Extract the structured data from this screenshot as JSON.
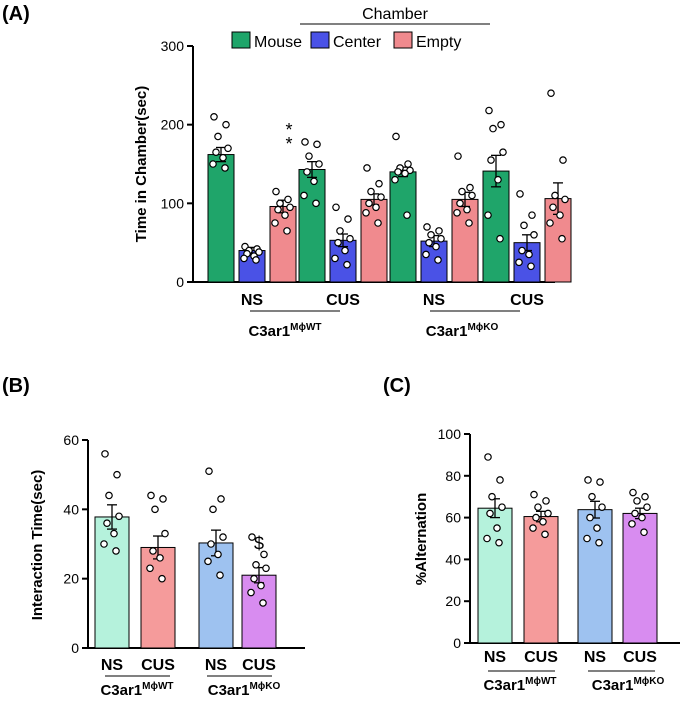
{
  "colors": {
    "mouse": "#1fa56a",
    "center": "#4a52e6",
    "empty": "#f08a8e",
    "wt_ns": "#b5f2dc",
    "wt_cus": "#f59b9b",
    "ko_ns": "#9ec2f0",
    "ko_cus": "#d88cf0"
  },
  "chart_data": [
    {
      "panel": "(A)",
      "type": "bar",
      "ylabel": "Time in Chamber(sec)",
      "ylim": [
        0,
        300
      ],
      "yticks": [
        "0",
        "100",
        "200",
        "300"
      ],
      "legend_title": "Chamber",
      "legend_placement": "top",
      "groups": [
        {
          "label": "NS",
          "genotype": 0,
          "values": [
            162,
            40,
            96
          ],
          "errors": [
            9,
            4,
            8
          ],
          "points": [
            [
              210,
              200,
              185,
              170,
              165,
              158,
              150,
              145
            ],
            [
              45,
              42,
              40,
              38,
              36,
              33,
              30,
              28
            ],
            [
              115,
              105,
              100,
              95,
              92,
              85,
              75,
              65
            ]
          ],
          "annotation": "*\n*"
        },
        {
          "label": "CUS",
          "genotype": 0,
          "values": [
            143,
            53,
            105
          ],
          "errors": [
            10,
            8,
            7
          ],
          "points": [
            [
              178,
              175,
              160,
              150,
              140,
              128,
              110,
              100
            ],
            [
              95,
              80,
              65,
              55,
              50,
              40,
              30,
              22
            ],
            [
              145,
              125,
              115,
              108,
              100,
              95,
              88,
              75
            ]
          ],
          "annotation": ""
        },
        {
          "label": "NS",
          "genotype": 1,
          "values": [
            140,
            52,
            105
          ],
          "errors": [
            6,
            7,
            9
          ],
          "points": [
            [
              185,
              150,
              145,
              142,
              140,
              138,
              130,
              85
            ],
            [
              70,
              65,
              60,
              55,
              50,
              45,
              35,
              28
            ],
            [
              160,
              120,
              115,
              110,
              100,
              92,
              88,
              75
            ]
          ],
          "annotation": ""
        },
        {
          "label": "CUS",
          "genotype": 1,
          "values": [
            141,
            50,
            106
          ],
          "errors": [
            20,
            10,
            20
          ],
          "points": [
            [
              218,
              200,
              195,
              165,
              155,
              130,
              85,
              55
            ],
            [
              112,
              85,
              72,
              60,
              40,
              35,
              25,
              20
            ],
            [
              240,
              155,
              110,
              105,
              95,
              85,
              75,
              55
            ]
          ],
          "annotation": ""
        }
      ],
      "series": [
        {
          "name": "Mouse",
          "color_key": "mouse"
        },
        {
          "name": "Center",
          "color_key": "center"
        },
        {
          "name": "Empty",
          "color_key": "empty"
        }
      ],
      "genotypes": [
        {
          "base": "C3ar1",
          "sup": "MϕWT"
        },
        {
          "base": "C3ar1",
          "sup": "MϕKO"
        }
      ]
    },
    {
      "panel": "(B)",
      "type": "bar",
      "ylabel": "Interaction Time(sec)",
      "ylim": [
        0,
        60
      ],
      "yticks": [
        "0",
        "20",
        "40",
        "60"
      ],
      "categories": [
        "NS",
        "CUS",
        "NS",
        "CUS"
      ],
      "values": [
        37.8,
        29,
        30.3,
        21
      ],
      "errors": [
        3.5,
        3.3,
        3.7,
        2.2
      ],
      "color_keys": [
        "wt_ns",
        "wt_cus",
        "ko_ns",
        "ko_cus"
      ],
      "points": [
        [
          56,
          50,
          44,
          38,
          36,
          33,
          30,
          28
        ],
        [
          44,
          43,
          40,
          33,
          28,
          26,
          23,
          20
        ],
        [
          51,
          43,
          40,
          32,
          30,
          27,
          25,
          21
        ],
        [
          32,
          27,
          24,
          23,
          20,
          18,
          16,
          13
        ]
      ],
      "annotations": [
        "",
        "",
        "",
        "$"
      ],
      "genotypes": [
        {
          "base": "C3ar1",
          "sup": "MϕWT"
        },
        {
          "base": "C3ar1",
          "sup": "MϕKO"
        }
      ]
    },
    {
      "panel": "(C)",
      "type": "bar",
      "ylabel": "%Alternation",
      "ylim": [
        0,
        100
      ],
      "yticks": [
        "0",
        "20",
        "40",
        "60",
        "80",
        "100"
      ],
      "categories": [
        "NS",
        "CUS",
        "NS",
        "CUS"
      ],
      "values": [
        64.5,
        60.5,
        63.8,
        62
      ],
      "errors": [
        4.5,
        2.5,
        4,
        2.5
      ],
      "color_keys": [
        "wt_ns",
        "wt_cus",
        "ko_ns",
        "ko_cus"
      ],
      "points": [
        [
          89,
          78,
          70,
          65,
          62,
          55,
          50,
          48
        ],
        [
          71,
          68,
          65,
          62,
          60,
          58,
          55,
          52
        ],
        [
          78,
          77,
          70,
          65,
          60,
          55,
          50,
          48
        ],
        [
          72,
          70,
          68,
          65,
          62,
          60,
          57,
          53
        ]
      ],
      "annotations": [
        "",
        "",
        "",
        ""
      ],
      "genotypes": [
        {
          "base": "C3ar1",
          "sup": "MϕWT"
        },
        {
          "base": "C3ar1",
          "sup": "MϕKO"
        }
      ]
    }
  ]
}
